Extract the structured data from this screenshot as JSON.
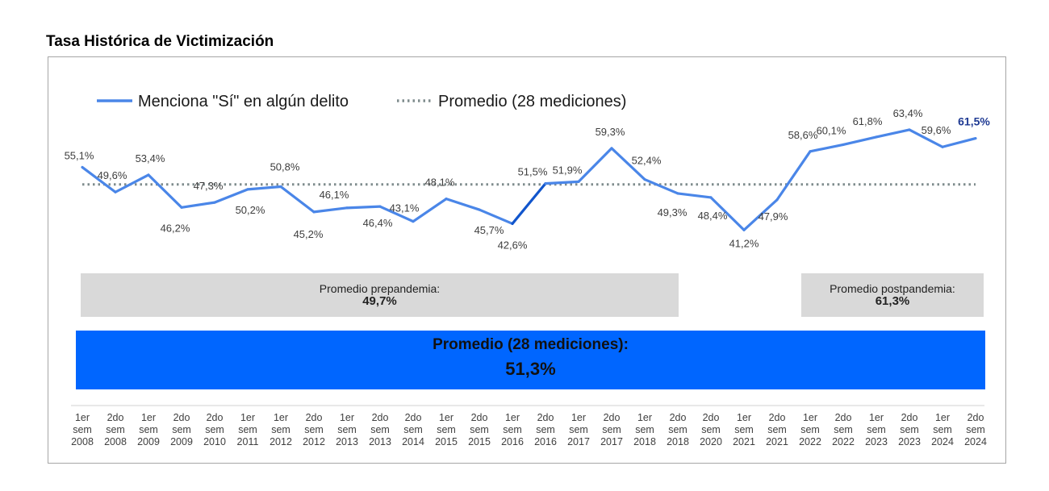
{
  "title": "Tasa Histórica de Victimización",
  "legend": {
    "series_label": "Menciona \"Sí\" en algún delito",
    "avg_label": "Promedio (28 mediciones)"
  },
  "boxes": {
    "pre": {
      "label": "Promedio prepandemia:",
      "value": "49,7%"
    },
    "post": {
      "label": "Promedio postpandemia:",
      "value": "61,3%"
    },
    "overall": {
      "label": "Promedio  (28 mediciones):",
      "value": "51,3%"
    }
  },
  "colors": {
    "line": "#4a86e8",
    "highlight_segment": "#1155cc",
    "avg_line": "#7f8c8d",
    "box_gray": "#d9d9d9",
    "box_blue": "#0066ff",
    "last_label": "#1f3a93"
  },
  "chart_data": {
    "type": "line",
    "title": "Tasa Histórica de Victimización",
    "categories": [
      "1er sem 2008",
      "2do sem 2008",
      "1er sem 2009",
      "2do sem 2009",
      "2do sem 2010",
      "1er sem 2011",
      "1er sem 2012",
      "2do sem 2012",
      "1er sem 2013",
      "2do sem 2013",
      "2do sem 2014",
      "1er sem 2015",
      "2do sem 2015",
      "1er sem 2016",
      "2do sem 2016",
      "1er sem 2017",
      "2do sem 2017",
      "1er sem 2018",
      "2do sem 2018",
      "2do sem 2020",
      "1er sem 2021",
      "2do sem 2021",
      "1er sem 2022",
      "2do sem 2022",
      "1er sem 2023",
      "2do sem 2023",
      "1er sem 2024",
      "2do sem 2024"
    ],
    "series": [
      {
        "name": "Menciona \"Sí\" en algún delito",
        "values": [
          55.1,
          49.6,
          53.4,
          46.2,
          47.3,
          50.2,
          50.8,
          45.2,
          46.1,
          46.4,
          43.1,
          48.1,
          45.7,
          42.6,
          51.5,
          51.9,
          59.3,
          52.4,
          49.3,
          48.4,
          41.2,
          47.9,
          58.6,
          60.1,
          61.8,
          63.4,
          59.6,
          61.5
        ],
        "labels": [
          "55,1%",
          "49,6%",
          "53,4%",
          "46,2%",
          "47,3%",
          "50,2%",
          "50,8%",
          "45,2%",
          "46,1%",
          "46,4%",
          "43,1%",
          "48,1%",
          "45,7%",
          "42,6%",
          "51,5%",
          "51,9%",
          "59,3%",
          "52,4%",
          "49,3%",
          "48,4%",
          "41,2%",
          "47,9%",
          "58,6%",
          "60,1%",
          "61,8%",
          "63,4%",
          "59,6%",
          "61,5%"
        ]
      },
      {
        "name": "Promedio (28 mediciones)",
        "constant": 51.3
      }
    ],
    "legend_position": "top-left",
    "grid": false
  }
}
